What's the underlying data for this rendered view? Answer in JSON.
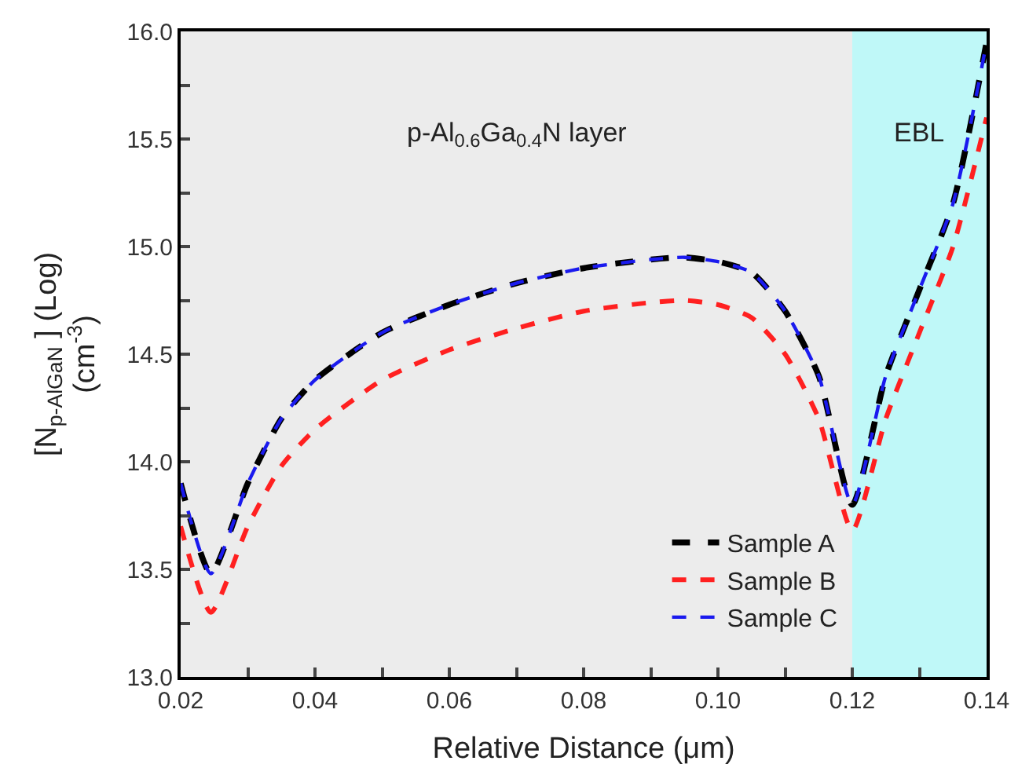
{
  "chart_data": {
    "type": "line",
    "xlabel": "Relative Distance (μm)",
    "ylabel": "[N$_{p-AlGaN}$ ] (Log)\n(cm$^{-3}$)",
    "xlim": [
      0.02,
      0.14
    ],
    "ylim": [
      13.0,
      16.0
    ],
    "xticks": [
      0.02,
      {
        "value": 0.03,
        "label": null
      },
      0.04,
      {
        "value": 0.05,
        "label": null
      },
      0.06,
      {
        "value": 0.07,
        "label": null
      },
      0.08,
      {
        "value": 0.09,
        "label": null
      },
      "0.10",
      {
        "value": 0.11,
        "label": null
      },
      0.12,
      {
        "value": 0.13,
        "label": null
      },
      0.14
    ],
    "yticks": [
      {
        "value": 13.0,
        "label": "13.0"
      },
      {
        "value": 13.25,
        "label": null
      },
      13.5,
      {
        "value": 13.75,
        "label": null
      },
      {
        "value": 14.0,
        "label": "14.0"
      },
      {
        "value": 14.25,
        "label": null
      },
      14.5,
      {
        "value": 14.75,
        "label": null
      },
      {
        "value": 15.0,
        "label": "15.0"
      },
      {
        "value": 15.25,
        "label": null
      },
      15.5,
      {
        "value": 15.75,
        "label": null
      },
      {
        "value": 16.0,
        "label": "16.0"
      }
    ],
    "grid": false,
    "legend": "bottom right",
    "line_style": "dashed",
    "marker": "none",
    "bands": [
      {
        "axis": "x",
        "from": 0.02,
        "to": 0.12,
        "label": "p-Al$_{0.6}$Ga$_{0.4}$N layer",
        "color": "#ececec"
      },
      {
        "axis": "x",
        "from": 0.12,
        "to": 0.14,
        "label": "EBL",
        "color": "#bff8f8"
      }
    ],
    "x": [
      0.02,
      0.0245,
      0.03,
      0.035,
      0.04,
      0.05,
      0.06,
      0.07,
      0.08,
      0.09,
      0.095,
      0.1,
      0.105,
      0.11,
      0.115,
      0.12,
      0.125,
      0.13,
      0.135,
      0.14
    ],
    "series": [
      {
        "name": "Sample A",
        "color": "#000000",
        "values": [
          13.9,
          13.48,
          13.9,
          14.2,
          14.38,
          14.6,
          14.73,
          14.83,
          14.9,
          14.94,
          14.95,
          14.93,
          14.88,
          14.7,
          14.4,
          13.8,
          14.4,
          14.8,
          15.2,
          15.95
        ]
      },
      {
        "name": "Sample B",
        "color": "#ff2020",
        "values": [
          13.7,
          13.3,
          13.7,
          13.98,
          14.15,
          14.38,
          14.52,
          14.62,
          14.7,
          14.74,
          14.75,
          14.73,
          14.67,
          14.5,
          14.2,
          13.68,
          14.2,
          14.6,
          15.0,
          15.6
        ]
      },
      {
        "name": "Sample C",
        "color": "#1a1aee",
        "values": [
          13.9,
          13.48,
          13.9,
          14.2,
          14.38,
          14.6,
          14.73,
          14.83,
          14.9,
          14.94,
          14.95,
          14.93,
          14.88,
          14.7,
          14.4,
          13.8,
          14.4,
          14.8,
          15.2,
          15.95
        ]
      }
    ]
  }
}
